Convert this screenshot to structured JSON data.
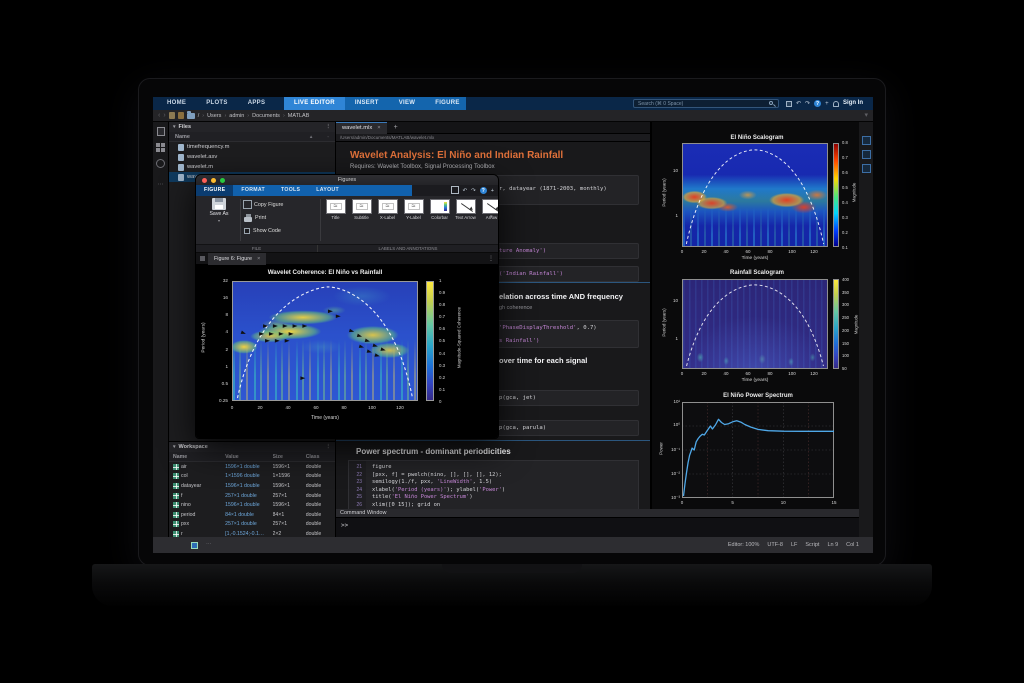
{
  "icons": {
    "caret_down": "▾",
    "overflow": "⋮",
    "more": "⋯",
    "undo": "↶",
    "redo": "↷",
    "help": "?",
    "plus": "+",
    "close": "×",
    "back": "‹",
    "forward": "›",
    "menu": "≡"
  },
  "toolstrip": {
    "main_tabs": [
      "HOME",
      "PLOTS",
      "APPS"
    ],
    "contextual_tabs": [
      "LIVE EDITOR",
      "INSERT",
      "VIEW",
      "FIGURE"
    ],
    "active_contextual_tab": "LIVE EDITOR",
    "search_placeholder": "Search (⌘ 0 Space)",
    "sign_in": "Sign In"
  },
  "quick_access": {
    "root": "/",
    "breadcrumb": [
      "Users",
      "admin",
      "Documents",
      "MATLAB"
    ]
  },
  "files_panel": {
    "title": "Files",
    "column": "Name",
    "files": [
      "timefrequency.m",
      "wavelet.asv",
      "wavelet.m",
      "wavelet.mlx"
    ],
    "selected_file": "wavelet.mlx"
  },
  "workspace_panel": {
    "title": "Workspace",
    "columns": [
      "Name",
      "Value",
      "Size",
      "Class"
    ],
    "rows": [
      [
        "air",
        "1596×1 double",
        "1596×1",
        "double"
      ],
      [
        "col",
        "1×1596 double",
        "1×1596",
        "double"
      ],
      [
        "datayear",
        "1596×1 double",
        "1596×1",
        "double"
      ],
      [
        "f",
        "257×1 double",
        "257×1",
        "double"
      ],
      [
        "nino",
        "1596×1 double",
        "1596×1",
        "double"
      ],
      [
        "period",
        "84×1 double",
        "84×1",
        "double"
      ],
      [
        "pxx",
        "257×1 double",
        "257×1",
        "double"
      ],
      [
        "r",
        "[1,-0.1524;-0.1…",
        "2×2",
        "double"
      ]
    ]
  },
  "editor": {
    "tab": "wavelet.mlx",
    "path": "/Users/admin/Documents/MATLAB/wavelet.mlx",
    "title": "Wavelet Analysis: El Niño and Indian Rainfall",
    "subtitle": "Requires: Wavelet Toolbox, Signal Processing Toolbox",
    "fragments": {
      "load_line": "r, datayear (1871-2003, monthly)",
      "anomaly": "ture Anomaly')",
      "rainfall_label": "('Indian Rainfall')",
      "coherence_heading": "elation across time AND frequency",
      "coherence_sub": "gh coherence",
      "threshold": "'PhaseDisplayThreshold', 0.7)",
      "vs_rainfall": "s Rainfall')",
      "scalogram_heading": "over time for each signal",
      "colormap_jet": "p(gca, jet)",
      "colormap_parula": "p(gca, parula)",
      "power_heading": "Power spectrum - dominant periodicities"
    },
    "code": {
      "start_line": 21,
      "lines": [
        "figure",
        "[pxx, f] = pwelch(nino, [], [], [], 12);",
        "semilogy(1./f, pxx, 'LineWidth', 1.5)",
        "xlabel('Period (years)'); ylabel('Power')",
        "title('El Niño Power Spectrum')",
        "xlim([0 15]); grid on"
      ]
    }
  },
  "figures_window": {
    "title": "Figures",
    "tabs": [
      "FIGURE",
      "FORMAT",
      "TOOLS",
      "LAYOUT"
    ],
    "active_tab": "FIGURE",
    "file_section": {
      "save_as": "Save As",
      "copy_figure": "Copy Figure",
      "print": "Print",
      "show_code": "Show Code",
      "label": "FILE"
    },
    "annotation_section": {
      "items": [
        "Title",
        "Subtitle",
        "X-Label",
        "Y-Label",
        "Colorbar",
        "Text Arrow",
        "Arrow"
      ],
      "label": "LABELS AND ANNOTATIONS"
    },
    "figure_tab": "Figure 6: Figure",
    "plot": {
      "title": "Wavelet Coherence: El Niño vs Rainfall",
      "xlabel": "Time (years)",
      "ylabel": "Period (years)",
      "y_ticks": [
        "32",
        "16",
        "8",
        "4",
        "2",
        "1",
        "0.5",
        "0.25"
      ],
      "x_ticks": [
        "0",
        "20",
        "40",
        "60",
        "80",
        "100",
        "120"
      ],
      "colorbar_label": "Magnitude-Squared Coherence",
      "colorbar_ticks": [
        "1",
        "0.9",
        "0.8",
        "0.7",
        "0.6",
        "0.5",
        "0.4",
        "0.3",
        "0.2",
        "0.1",
        "0"
      ]
    }
  },
  "right_plots": {
    "p1": {
      "title": "El Niño Scalogram",
      "ylabel": "Period (years)",
      "xlabel": "Time (years)",
      "y_ticks": [
        "10",
        "1"
      ],
      "x_ticks": [
        "0",
        "20",
        "40",
        "60",
        "80",
        "100",
        "120"
      ],
      "colorbar_label": "Magnitude",
      "colorbar_ticks": [
        "0.8",
        "0.7",
        "0.6",
        "0.5",
        "0.4",
        "0.3",
        "0.2",
        "0.1"
      ]
    },
    "p2": {
      "title": "Rainfall Scalogram",
      "ylabel": "Period (years)",
      "xlabel": "Time (years)",
      "y_ticks": [
        "10",
        "1"
      ],
      "x_ticks": [
        "0",
        "20",
        "40",
        "60",
        "80",
        "100",
        "120"
      ],
      "colorbar_label": "Magnitude",
      "colorbar_ticks": [
        "400",
        "350",
        "300",
        "250",
        "200",
        "150",
        "100",
        "50"
      ]
    },
    "p3": {
      "title": "El Niño Power Spectrum",
      "ylabel": "Power",
      "y_ticks": [
        "10¹",
        "10⁰",
        "10⁻¹",
        "10⁻²",
        "10⁻³"
      ],
      "x_ticks": [
        "0",
        "5",
        "10",
        "15"
      ]
    }
  },
  "command_window": {
    "title": "Command Window",
    "prompt": ">>"
  },
  "status_bar": {
    "more": "⋯",
    "items": [
      "Editor: 100%",
      "UTF-8",
      "LF",
      "Script",
      "Ln 9",
      "Col 1"
    ]
  },
  "colors": {
    "accent_blue": "#1465ad",
    "heading_orange": "#e0713a",
    "string_purple": "#c586d6",
    "line_blue": "#4fa8e8"
  },
  "chart_data": [
    {
      "type": "heatmap",
      "title": "Wavelet Coherence: El Niño vs Rainfall",
      "xlabel": "Time (years)",
      "ylabel": "Period (years)",
      "x_range": [
        0,
        133
      ],
      "y_scale": "log2",
      "y_ticks": [
        32,
        16,
        8,
        4,
        2,
        1,
        0.5,
        0.25
      ],
      "x_ticks": [
        0,
        20,
        40,
        60,
        80,
        100,
        120
      ],
      "colormap": "parula",
      "colorbar": {
        "label": "Magnitude-Squared Coherence",
        "range": [
          0,
          1
        ]
      },
      "annotations": [
        "white dashed cone of influence",
        "black phase arrows over high-coherence regions"
      ],
      "high_coherence_regions": [
        {
          "time": [
            5,
            12
          ],
          "period": [
            2,
            4
          ]
        },
        {
          "time": [
            15,
            55
          ],
          "period": [
            2.5,
            6
          ]
        },
        {
          "time": [
            85,
            125
          ],
          "period": [
            1.5,
            8
          ]
        }
      ]
    },
    {
      "type": "heatmap",
      "title": "El Niño Scalogram",
      "xlabel": "Time (years)",
      "ylabel": "Period (years)",
      "x_range": [
        0,
        133
      ],
      "y_ticks": [
        10,
        1
      ],
      "colormap": "jet",
      "colorbar": {
        "label": "Magnitude",
        "range": [
          0,
          0.8
        ]
      },
      "annotations": [
        "high-magnitude band at periods 2–8 years",
        "white dashed cone of influence"
      ]
    },
    {
      "type": "heatmap",
      "title": "Rainfall Scalogram",
      "xlabel": "Time (years)",
      "ylabel": "Period (years)",
      "x_range": [
        0,
        133
      ],
      "y_ticks": [
        10,
        1
      ],
      "colormap": "parula",
      "colorbar": {
        "label": "Magnitude",
        "range": [
          0,
          400
        ]
      },
      "annotations": [
        "low uniform magnitude",
        "white dashed cone of influence"
      ]
    },
    {
      "type": "line",
      "title": "El Niño Power Spectrum",
      "ylabel": "Power",
      "y_scale": "log",
      "ylim": [
        0.001,
        10
      ],
      "x_ticks": [
        0,
        5,
        10,
        15
      ],
      "grid": true,
      "x": [
        0.15,
        0.3,
        0.45,
        0.6,
        0.75,
        0.9,
        1.0,
        1.2,
        1.4,
        1.6,
        1.8,
        2.0,
        2.2,
        2.5,
        2.8,
        3.0,
        3.3,
        3.6,
        3.9,
        4.2,
        4.6,
        5.0,
        5.4,
        5.8,
        6.2,
        6.8,
        7.5,
        8.5,
        10,
        12,
        15
      ],
      "y": [
        0.0012,
        0.004,
        0.012,
        0.03,
        0.06,
        0.09,
        0.12,
        0.1,
        0.22,
        0.3,
        0.38,
        0.45,
        0.42,
        0.65,
        1.0,
        0.75,
        1.1,
        1.9,
        1.4,
        1.15,
        1.25,
        1.5,
        1.65,
        1.45,
        1.15,
        0.9,
        0.72,
        0.64,
        0.61,
        0.6,
        0.6
      ]
    }
  ]
}
